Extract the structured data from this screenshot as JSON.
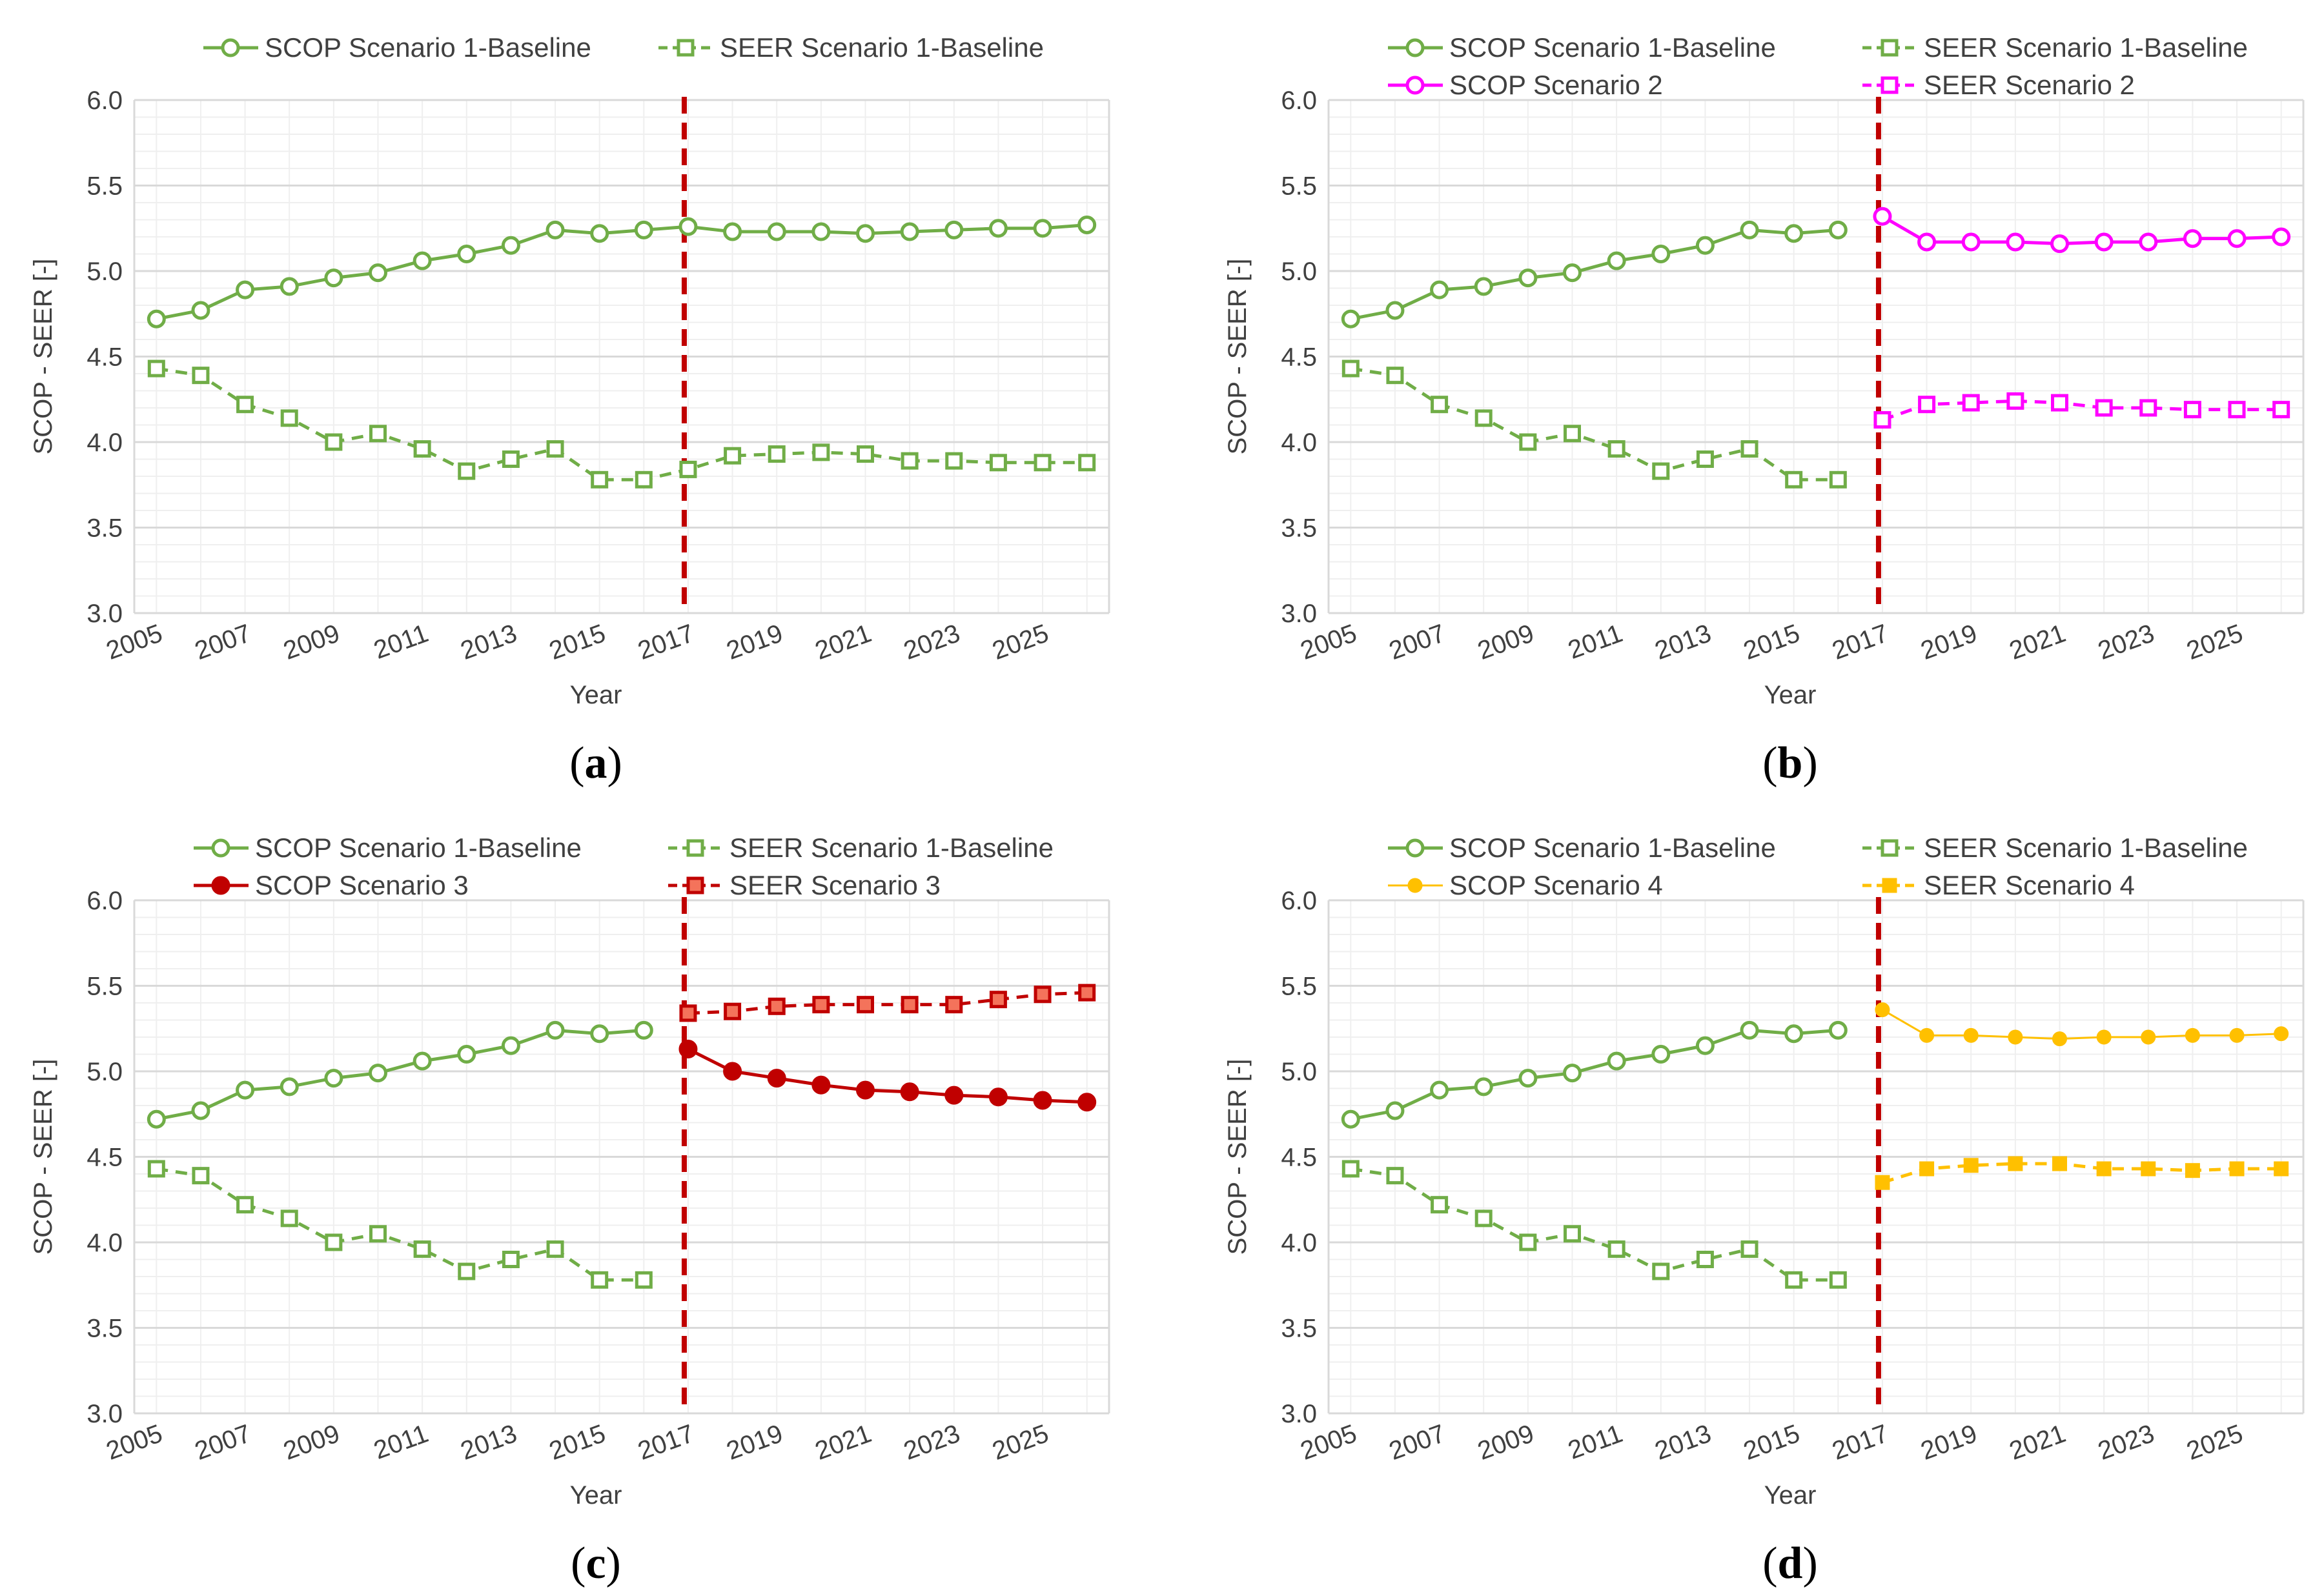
{
  "figure": {
    "colors": {
      "grid_major": "#d9d9d9",
      "grid_minor": "#efefef",
      "divider": "#c00000"
    }
  },
  "chart_data": [
    {
      "type": "line",
      "panel_label": "a",
      "xlabel": "Year",
      "ylabel": "SCOP - SEER [-]",
      "ylim": [
        3.0,
        6.0
      ],
      "y_ticks": [
        "3.0",
        "3.5",
        "4.0",
        "4.5",
        "5.0",
        "5.5",
        "6.0"
      ],
      "x_ticks": [
        "2005",
        "2007",
        "2009",
        "2011",
        "2013",
        "2015",
        "2017",
        "2019",
        "2021",
        "2023",
        "2025"
      ],
      "divider_year": 2017,
      "grid": true,
      "legend_position": "top",
      "series": [
        {
          "name": "SCOP Scenario 1-Baseline",
          "color": "#70ad47",
          "style": "solid",
          "marker": "circle-open",
          "x": [
            2005,
            2006,
            2007,
            2008,
            2009,
            2010,
            2011,
            2012,
            2013,
            2014,
            2015,
            2016,
            2017,
            2018,
            2019,
            2020,
            2021,
            2022,
            2023,
            2024,
            2025,
            2026
          ],
          "values": [
            4.72,
            4.77,
            4.89,
            4.91,
            4.96,
            4.99,
            5.06,
            5.1,
            5.15,
            5.24,
            5.22,
            5.24,
            5.26,
            5.23,
            5.23,
            5.23,
            5.22,
            5.23,
            5.24,
            5.25,
            5.25,
            5.27
          ]
        },
        {
          "name": "SEER Scenario 1-Baseline",
          "color": "#70ad47",
          "style": "dashed",
          "marker": "square-open",
          "x": [
            2005,
            2006,
            2007,
            2008,
            2009,
            2010,
            2011,
            2012,
            2013,
            2014,
            2015,
            2016,
            2017,
            2018,
            2019,
            2020,
            2021,
            2022,
            2023,
            2024,
            2025,
            2026
          ],
          "values": [
            4.43,
            4.39,
            4.22,
            4.14,
            4.0,
            4.05,
            3.96,
            3.83,
            3.9,
            3.96,
            3.78,
            3.78,
            3.84,
            3.92,
            3.93,
            3.94,
            3.93,
            3.89,
            3.89,
            3.88,
            3.88,
            3.88
          ]
        }
      ]
    },
    {
      "type": "line",
      "panel_label": "b",
      "xlabel": "Year",
      "ylabel": "SCOP - SEER [-]",
      "ylim": [
        3.0,
        6.0
      ],
      "y_ticks": [
        "3.0",
        "3.5",
        "4.0",
        "4.5",
        "5.0",
        "5.5",
        "6.0"
      ],
      "x_ticks": [
        "2005",
        "2007",
        "2009",
        "2011",
        "2013",
        "2015",
        "2017",
        "2019",
        "2021",
        "2023",
        "2025"
      ],
      "divider_year": 2017,
      "grid": true,
      "legend_position": "top",
      "series": [
        {
          "name": "SCOP Scenario 1-Baseline",
          "color": "#70ad47",
          "style": "solid",
          "marker": "circle-open",
          "x": [
            2005,
            2006,
            2007,
            2008,
            2009,
            2010,
            2011,
            2012,
            2013,
            2014,
            2015,
            2016
          ],
          "values": [
            4.72,
            4.77,
            4.89,
            4.91,
            4.96,
            4.99,
            5.06,
            5.1,
            5.15,
            5.24,
            5.22,
            5.24
          ]
        },
        {
          "name": "SEER Scenario 1-Baseline",
          "color": "#70ad47",
          "style": "dashed",
          "marker": "square-open",
          "x": [
            2005,
            2006,
            2007,
            2008,
            2009,
            2010,
            2011,
            2012,
            2013,
            2014,
            2015,
            2016
          ],
          "values": [
            4.43,
            4.39,
            4.22,
            4.14,
            4.0,
            4.05,
            3.96,
            3.83,
            3.9,
            3.96,
            3.78,
            3.78
          ]
        },
        {
          "name": "SCOP Scenario 2",
          "color": "#ff00ff",
          "style": "solid",
          "marker": "circle-open",
          "x": [
            2017,
            2018,
            2019,
            2020,
            2021,
            2022,
            2023,
            2024,
            2025,
            2026
          ],
          "values": [
            5.32,
            5.17,
            5.17,
            5.17,
            5.16,
            5.17,
            5.17,
            5.19,
            5.19,
            5.2
          ]
        },
        {
          "name": "SEER Scenario 2",
          "color": "#ff00ff",
          "style": "dashed",
          "marker": "square-open",
          "x": [
            2017,
            2018,
            2019,
            2020,
            2021,
            2022,
            2023,
            2024,
            2025,
            2026
          ],
          "values": [
            4.13,
            4.22,
            4.23,
            4.24,
            4.23,
            4.2,
            4.2,
            4.19,
            4.19,
            4.19
          ]
        }
      ]
    },
    {
      "type": "line",
      "panel_label": "c",
      "xlabel": "Year",
      "ylabel": "SCOP - SEER [-]",
      "ylim": [
        3.0,
        6.0
      ],
      "y_ticks": [
        "3.0",
        "3.5",
        "4.0",
        "4.5",
        "5.0",
        "5.5",
        "6.0"
      ],
      "x_ticks": [
        "2005",
        "2007",
        "2009",
        "2011",
        "2013",
        "2015",
        "2017",
        "2019",
        "2021",
        "2023",
        "2025"
      ],
      "divider_year": 2017,
      "grid": true,
      "legend_position": "top",
      "series": [
        {
          "name": "SCOP Scenario 1-Baseline",
          "color": "#70ad47",
          "style": "solid",
          "marker": "circle-open",
          "x": [
            2005,
            2006,
            2007,
            2008,
            2009,
            2010,
            2011,
            2012,
            2013,
            2014,
            2015,
            2016
          ],
          "values": [
            4.72,
            4.77,
            4.89,
            4.91,
            4.96,
            4.99,
            5.06,
            5.1,
            5.15,
            5.24,
            5.22,
            5.24
          ]
        },
        {
          "name": "SEER Scenario 1-Baseline",
          "color": "#70ad47",
          "style": "dashed",
          "marker": "square-open",
          "x": [
            2005,
            2006,
            2007,
            2008,
            2009,
            2010,
            2011,
            2012,
            2013,
            2014,
            2015,
            2016
          ],
          "values": [
            4.43,
            4.39,
            4.22,
            4.14,
            4.0,
            4.05,
            3.96,
            3.83,
            3.9,
            3.96,
            3.78,
            3.78
          ]
        },
        {
          "name": "SCOP Scenario 3",
          "color": "#c00000",
          "style": "solid",
          "marker": "circle-filled",
          "x": [
            2017,
            2018,
            2019,
            2020,
            2021,
            2022,
            2023,
            2024,
            2025,
            2026
          ],
          "values": [
            5.13,
            5.0,
            4.96,
            4.92,
            4.89,
            4.88,
            4.86,
            4.85,
            4.83,
            4.82
          ]
        },
        {
          "name": "SEER Scenario 3",
          "color": "#c00000",
          "style": "dashed",
          "marker": "square-filled",
          "x": [
            2017,
            2018,
            2019,
            2020,
            2021,
            2022,
            2023,
            2024,
            2025,
            2026
          ],
          "values": [
            5.34,
            5.35,
            5.38,
            5.39,
            5.39,
            5.39,
            5.39,
            5.42,
            5.45,
            5.46
          ]
        }
      ]
    },
    {
      "type": "line",
      "panel_label": "d",
      "xlabel": "Year",
      "ylabel": "SCOP - SEER [-]",
      "ylim": [
        3.0,
        6.0
      ],
      "y_ticks": [
        "3.0",
        "3.5",
        "4.0",
        "4.5",
        "5.0",
        "5.5",
        "6.0"
      ],
      "x_ticks": [
        "2005",
        "2007",
        "2009",
        "2011",
        "2013",
        "2015",
        "2017",
        "2019",
        "2021",
        "2023",
        "2025"
      ],
      "divider_year": 2017,
      "grid": true,
      "legend_position": "top",
      "series": [
        {
          "name": "SCOP Scenario 1-Baseline",
          "color": "#70ad47",
          "style": "solid",
          "marker": "circle-open",
          "x": [
            2005,
            2006,
            2007,
            2008,
            2009,
            2010,
            2011,
            2012,
            2013,
            2014,
            2015,
            2016
          ],
          "values": [
            4.72,
            4.77,
            4.89,
            4.91,
            4.96,
            4.99,
            5.06,
            5.1,
            5.15,
            5.24,
            5.22,
            5.24
          ]
        },
        {
          "name": "SEER Scenario 1-Baseline",
          "color": "#70ad47",
          "style": "dashed",
          "marker": "square-open",
          "x": [
            2005,
            2006,
            2007,
            2008,
            2009,
            2010,
            2011,
            2012,
            2013,
            2014,
            2015,
            2016
          ],
          "values": [
            4.43,
            4.39,
            4.22,
            4.14,
            4.0,
            4.05,
            3.96,
            3.83,
            3.9,
            3.96,
            3.78,
            3.78
          ]
        },
        {
          "name": "SCOP Scenario 4",
          "color": "#ffc000",
          "style": "thin-solid",
          "marker": "circle-filled-small",
          "x": [
            2017,
            2018,
            2019,
            2020,
            2021,
            2022,
            2023,
            2024,
            2025,
            2026
          ],
          "values": [
            5.36,
            5.21,
            5.21,
            5.2,
            5.19,
            5.2,
            5.2,
            5.21,
            5.21,
            5.22
          ]
        },
        {
          "name": "SEER Scenario 4",
          "color": "#ffc000",
          "style": "dashed",
          "marker": "square-filled-small",
          "x": [
            2017,
            2018,
            2019,
            2020,
            2021,
            2022,
            2023,
            2024,
            2025,
            2026
          ],
          "values": [
            4.35,
            4.43,
            4.45,
            4.46,
            4.46,
            4.43,
            4.43,
            4.42,
            4.43,
            4.43
          ]
        }
      ]
    }
  ]
}
